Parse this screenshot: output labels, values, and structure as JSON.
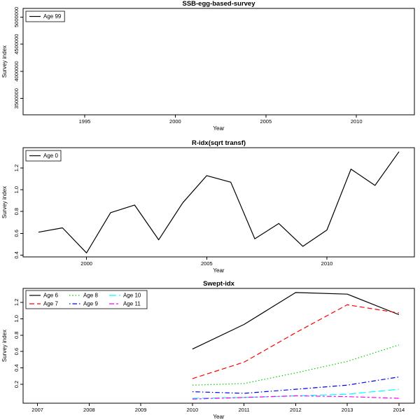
{
  "chart_data": [
    {
      "type": "line",
      "title": "SSB-egg-based-survey",
      "xlabel": "Year",
      "ylabel": "Survey index",
      "xlim": [
        1991.6,
        2013.2
      ],
      "ylim": [
        3200000,
        5160000
      ],
      "xticks": [
        1995,
        2000,
        2005,
        2010
      ],
      "xtick_labels": [
        "1995",
        "2000",
        "2005",
        "2010"
      ],
      "yticks": [
        3500000,
        4000000,
        4500000,
        5000000
      ],
      "ytick_labels": [
        "3500000",
        "4000000",
        "4500000",
        "5000000"
      ],
      "grid": false,
      "legend": {
        "position": "top-left",
        "cols": 1,
        "entries": [
          {
            "label": "Age 99",
            "color": "#000000",
            "dash": "solid"
          }
        ]
      },
      "series": []
    },
    {
      "type": "line",
      "title": "R-idx(sqrt transf)",
      "xlabel": "Year",
      "ylabel": "Survey index",
      "xlim": [
        1997.36,
        2013.64
      ],
      "ylim": [
        0.383,
        1.387
      ],
      "xticks": [
        2000,
        2005,
        2010
      ],
      "xtick_labels": [
        "2000",
        "2005",
        "2010"
      ],
      "yticks": [
        0.4,
        0.6,
        0.8,
        1.0,
        1.2
      ],
      "ytick_labels": [
        "0.4",
        "0.6",
        "0.8",
        "1.0",
        "1.2"
      ],
      "grid": false,
      "legend": {
        "position": "top-left",
        "cols": 1,
        "entries": [
          {
            "label": "Age 0",
            "color": "#000000",
            "dash": "solid"
          }
        ]
      },
      "series": [
        {
          "name": "Age 0",
          "color": "#000000",
          "dash": "solid",
          "x": [
            1998,
            1999,
            2000,
            2001,
            2002,
            2003,
            2004,
            2005,
            2006,
            2007,
            2008,
            2009,
            2010,
            2011,
            2012,
            2013
          ],
          "values": [
            0.61,
            0.65,
            0.42,
            0.79,
            0.86,
            0.54,
            0.88,
            1.13,
            1.07,
            0.55,
            0.69,
            0.48,
            0.63,
            1.19,
            1.04,
            1.35
          ]
        }
      ]
    },
    {
      "type": "line",
      "title": "Swept-idx",
      "xlabel": "Year",
      "ylabel": "Survey index",
      "xlim": [
        2006.72,
        2014.3
      ],
      "ylim": [
        -0.03,
        1.37
      ],
      "xticks": [
        2007,
        2008,
        2009,
        2010,
        2011,
        2012,
        2013,
        2014
      ],
      "xtick_labels": [
        "2007",
        "2008",
        "2009",
        "2010",
        "2011",
        "2012",
        "2013",
        "2014"
      ],
      "yticks": [
        0.2,
        0.4,
        0.6,
        0.8,
        1.0,
        1.2
      ],
      "ytick_labels": [
        "0.2",
        "0.4",
        "0.6",
        "0.8",
        "1.0",
        "1.2"
      ],
      "grid": false,
      "legend": {
        "position": "top-left",
        "cols": 3,
        "entries": [
          {
            "label": "Age 6",
            "color": "#000000",
            "dash": "solid"
          },
          {
            "label": "Age 7",
            "color": "#ff0000",
            "dash": "dashed"
          },
          {
            "label": "Age 8",
            "color": "#00cc00",
            "dash": "dotted"
          },
          {
            "label": "Age 9",
            "color": "#0000ff",
            "dash": "dashdot"
          },
          {
            "label": "Age 10",
            "color": "#00ffff",
            "dash": "longdash"
          },
          {
            "label": "Age 11",
            "color": "#ff00ff",
            "dash": "twodash"
          }
        ]
      },
      "series": [
        {
          "name": "Age 6",
          "color": "#000000",
          "dash": "solid",
          "x": [
            2010,
            2011,
            2012,
            2013,
            2014
          ],
          "values": [
            0.63,
            0.93,
            1.32,
            1.3,
            1.05
          ]
        },
        {
          "name": "Age 7",
          "color": "#ff0000",
          "dash": "dashed",
          "x": [
            2010,
            2011,
            2012,
            2013,
            2014
          ],
          "values": [
            0.27,
            0.47,
            0.83,
            1.17,
            1.07
          ]
        },
        {
          "name": "Age 8",
          "color": "#00cc00",
          "dash": "dotted",
          "x": [
            2010,
            2011,
            2012,
            2013,
            2014
          ],
          "values": [
            0.19,
            0.21,
            0.34,
            0.48,
            0.68
          ]
        },
        {
          "name": "Age 9",
          "color": "#0000ff",
          "dash": "dashdot",
          "x": [
            2010,
            2011,
            2012,
            2013,
            2014
          ],
          "values": [
            0.11,
            0.09,
            0.14,
            0.19,
            0.29
          ]
        },
        {
          "name": "Age 10",
          "color": "#00ffff",
          "dash": "longdash",
          "x": [
            2010,
            2011,
            2012,
            2013,
            2014
          ],
          "values": [
            0.03,
            0.04,
            0.06,
            0.08,
            0.14
          ]
        },
        {
          "name": "Age 11",
          "color": "#ff00ff",
          "dash": "twodash",
          "x": [
            2010,
            2011,
            2012,
            2013,
            2014
          ],
          "values": [
            0.02,
            0.04,
            0.06,
            0.05,
            0.03
          ]
        }
      ]
    }
  ]
}
